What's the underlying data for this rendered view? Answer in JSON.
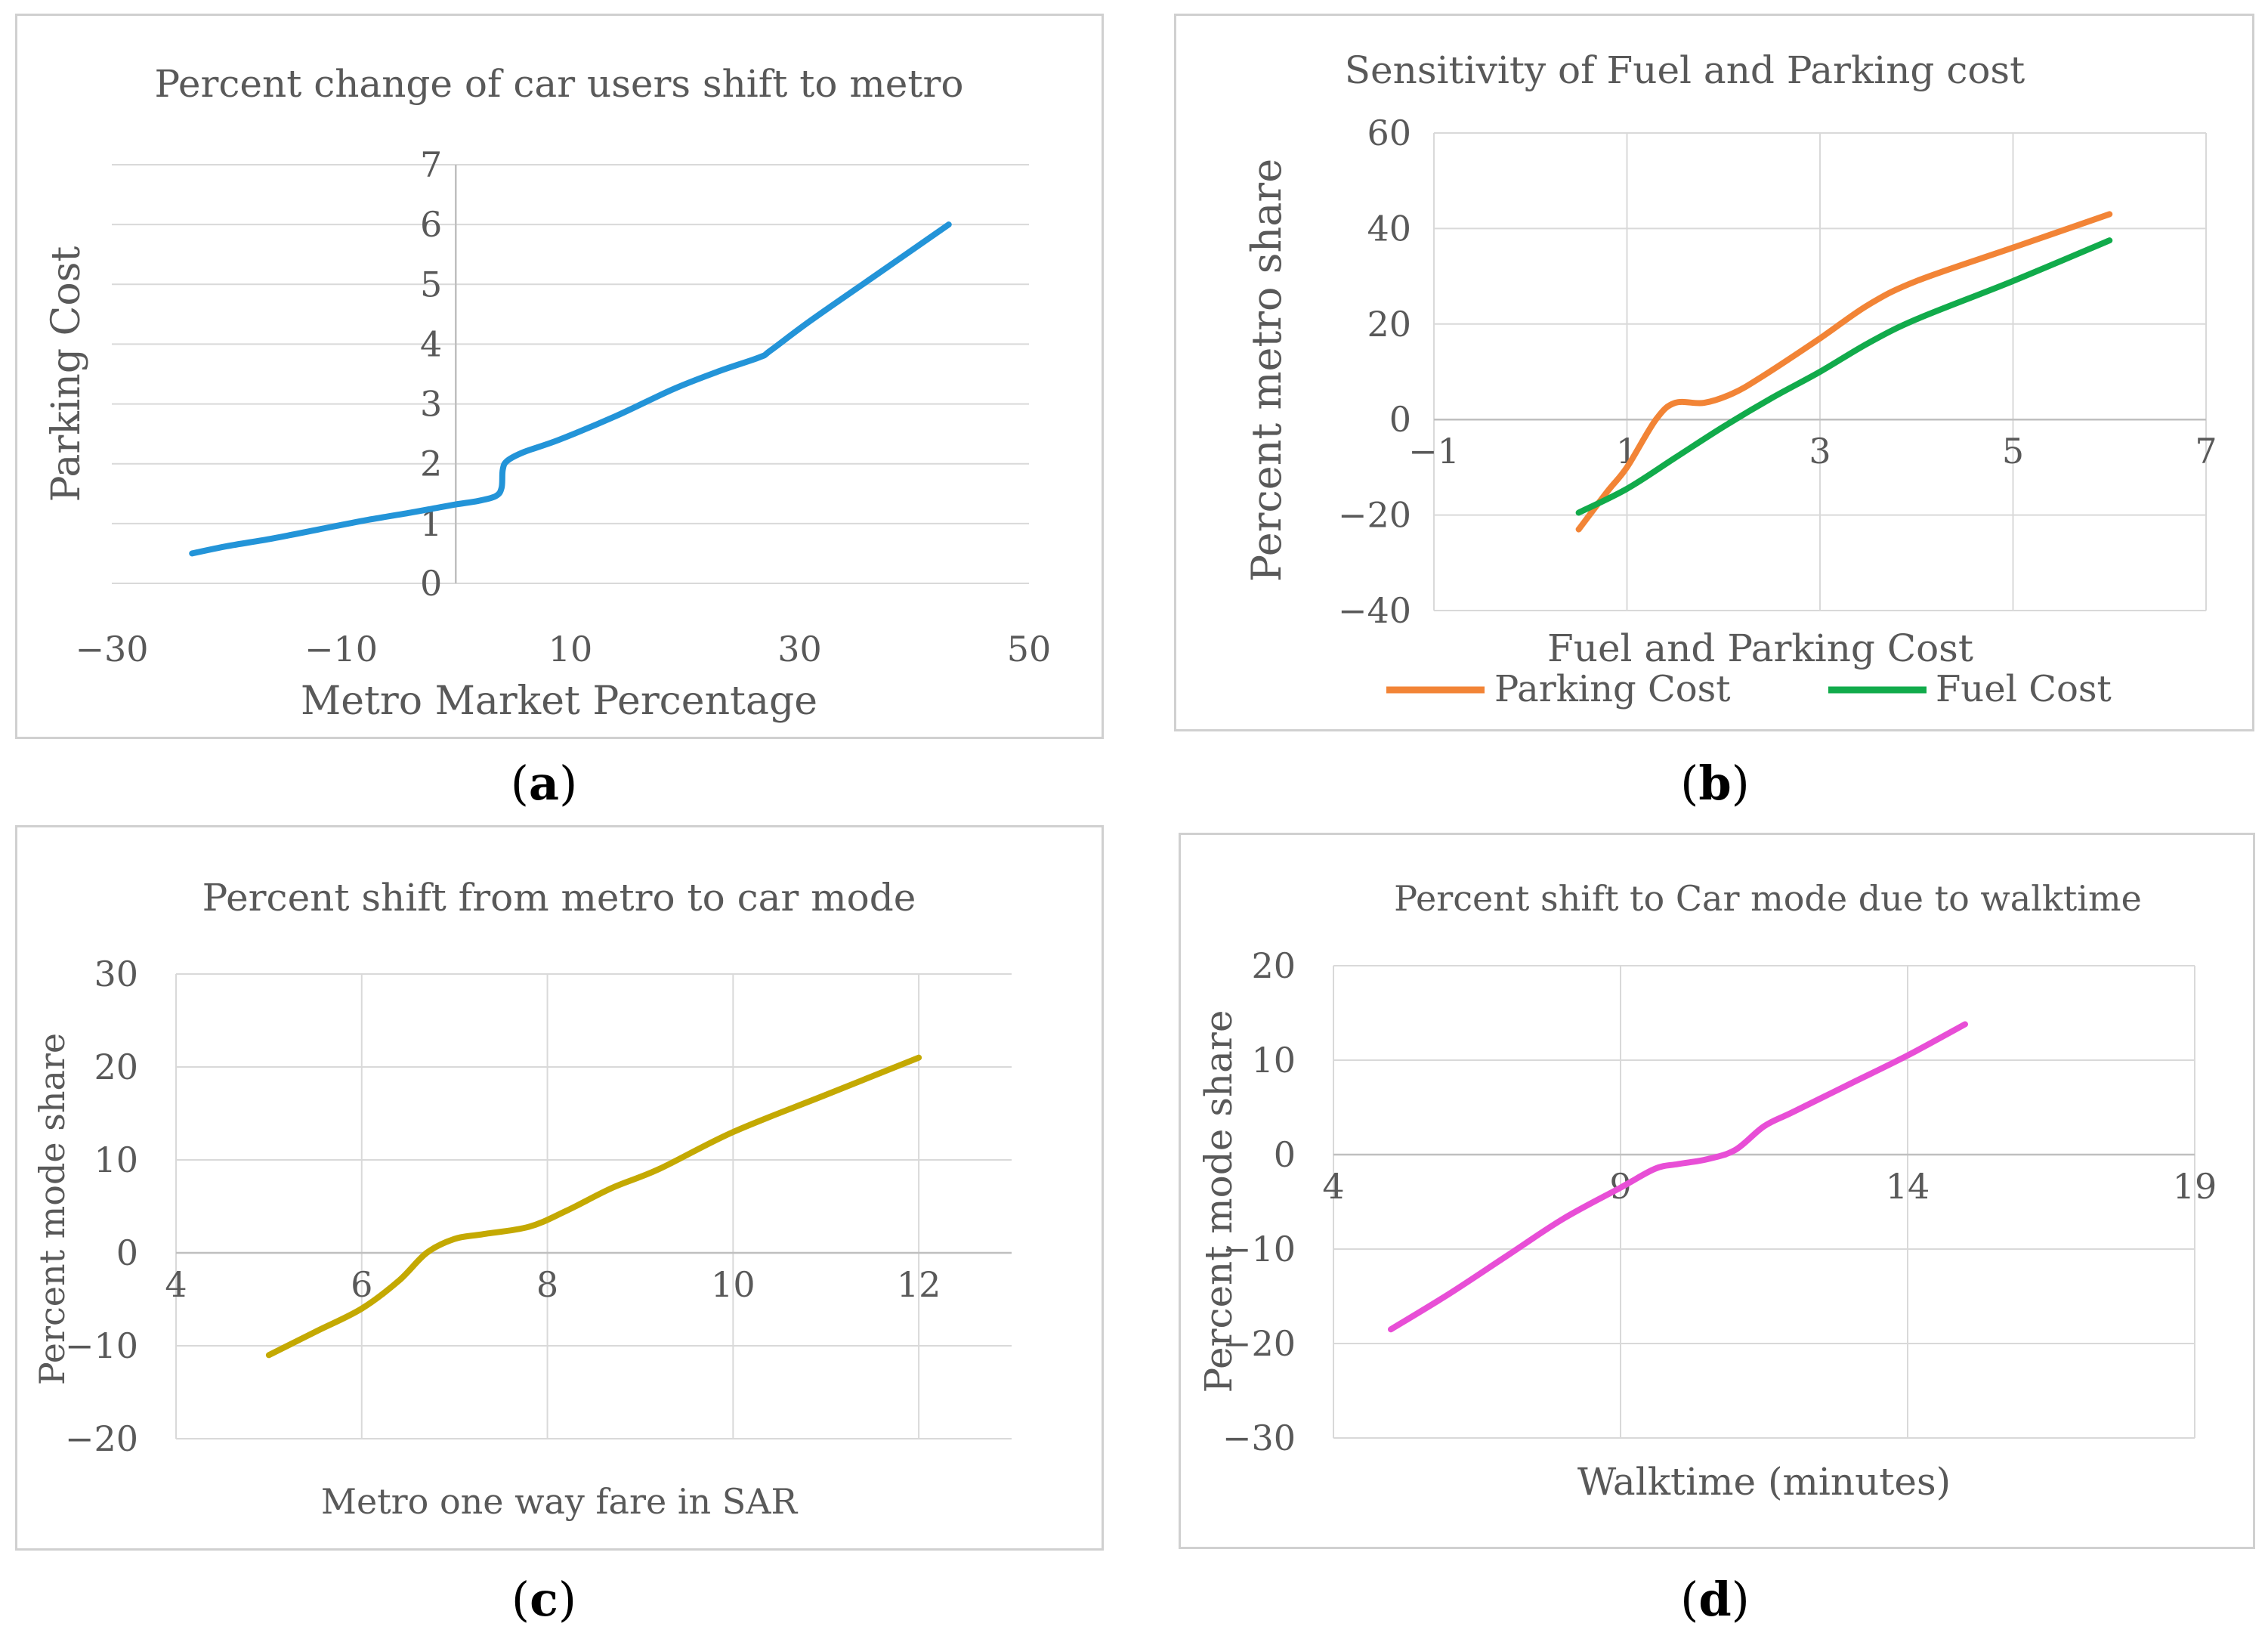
{
  "chart_data": [
    {
      "id": "a",
      "type": "line",
      "title": "Percent change of car users shift to metro",
      "xlabel": "Metro Market Percentage",
      "ylabel": "Parking Cost",
      "xlim": [
        -30,
        50
      ],
      "ylim": [
        0,
        7
      ],
      "xticks": [
        -30,
        -10,
        10,
        30,
        50
      ],
      "xtick_labels": [
        "−30",
        "−10",
        "10",
        "30",
        "50"
      ],
      "yticks": [
        0,
        1,
        2,
        3,
        4,
        5,
        6,
        7
      ],
      "ytick_labels": [
        "0",
        "1",
        "2",
        "3",
        "4",
        "5",
        "6",
        "7"
      ],
      "series": [
        {
          "name": "Parking Cost",
          "color": "#2394d8",
          "x": [
            -23,
            -20,
            -16,
            -12,
            -8,
            -4,
            -2,
            0,
            2,
            3.5,
            4,
            4.1,
            4.5,
            6,
            9,
            14,
            19,
            23,
            26.5,
            27.5,
            31,
            37,
            43
          ],
          "y": [
            0.5,
            0.62,
            0.75,
            0.9,
            1.05,
            1.18,
            1.25,
            1.32,
            1.38,
            1.46,
            1.6,
            1.9,
            2.05,
            2.2,
            2.4,
            2.8,
            3.25,
            3.55,
            3.78,
            3.9,
            4.4,
            5.2,
            6.0
          ]
        }
      ]
    },
    {
      "id": "b",
      "type": "line",
      "title": "Sensitivity of Fuel and Parking cost",
      "xlabel": "Fuel and Parking Cost",
      "ylabel": "Percent metro share",
      "xlim": [
        -1,
        7
      ],
      "ylim": [
        -40,
        60
      ],
      "xticks": [
        -1,
        1,
        3,
        5,
        7
      ],
      "xtick_labels": [
        "−1",
        "1",
        "3",
        "5",
        "7"
      ],
      "yticks": [
        -40,
        -20,
        0,
        20,
        40,
        60
      ],
      "ytick_labels": [
        "−40",
        "−20",
        "0",
        "20",
        "40",
        "60"
      ],
      "legend": "bottom",
      "series": [
        {
          "name": "Parking Cost",
          "color": "#f28436",
          "x": [
            0.5,
            0.8,
            1.0,
            1.3,
            1.5,
            1.8,
            2.1,
            2.4,
            3.0,
            3.5,
            4.0,
            5.0,
            6.0
          ],
          "y": [
            -23,
            -15,
            -10,
            0,
            3.5,
            3.5,
            5.5,
            9,
            17,
            24,
            29,
            36,
            43
          ]
        },
        {
          "name": "Fuel Cost",
          "color": "#11ab4b",
          "x": [
            0.5,
            1.0,
            1.5,
            2.0,
            2.5,
            3.0,
            3.5,
            4.0,
            5.0,
            6.0
          ],
          "y": [
            -19.5,
            -14.5,
            -8,
            -1.5,
            4.5,
            10,
            16,
            21,
            29,
            37.5
          ]
        }
      ]
    },
    {
      "id": "c",
      "type": "line",
      "title": "Percent shift from metro to car mode",
      "xlabel": "Metro one way fare in SAR",
      "ylabel": "Percent mode share",
      "xlim": [
        4,
        13
      ],
      "ylim": [
        -20,
        30
      ],
      "xticks": [
        4,
        6,
        8,
        10,
        12
      ],
      "xtick_labels": [
        "4",
        "6",
        "8",
        "10",
        "12"
      ],
      "yticks": [
        -20,
        -10,
        0,
        10,
        20,
        30
      ],
      "ytick_labels": [
        "−20",
        "−10",
        "0",
        "10",
        "20",
        "30"
      ],
      "series": [
        {
          "name": "Percent mode share",
          "color": "#c4a902",
          "x": [
            5,
            5.5,
            6,
            6.4,
            6.7,
            7,
            7.3,
            7.8,
            8.2,
            8.7,
            9.2,
            10,
            11,
            12
          ],
          "y": [
            -11,
            -8.5,
            -6,
            -3,
            0,
            1.5,
            2,
            2.8,
            4.5,
            7,
            9,
            13,
            17,
            21
          ]
        }
      ]
    },
    {
      "id": "d",
      "type": "line",
      "title": "Percent shift to Car mode due to walktime",
      "xlabel": "Walktime (minutes)",
      "ylabel": "Percent mode share",
      "xlim": [
        4,
        19
      ],
      "ylim": [
        -30,
        20
      ],
      "xticks": [
        4,
        9,
        14,
        19
      ],
      "xtick_labels": [
        "4",
        "9",
        "14",
        "19"
      ],
      "yticks": [
        -30,
        -20,
        -10,
        0,
        10,
        20
      ],
      "ytick_labels": [
        "−30",
        "−20",
        "−10",
        "0",
        "10",
        "20"
      ],
      "series": [
        {
          "name": "Percent mode share",
          "color": "#e84ed6",
          "x": [
            5,
            6,
            7,
            8,
            9,
            9.6,
            10,
            10.5,
            11,
            11.5,
            12,
            13,
            14,
            15
          ],
          "y": [
            -18.5,
            -14.8,
            -10.8,
            -6.8,
            -3.5,
            -1.5,
            -1.0,
            -0.5,
            0.5,
            3.0,
            4.5,
            7.5,
            10.5,
            13.8
          ]
        }
      ]
    }
  ],
  "captions": [
    "a",
    "b",
    "c",
    "d"
  ]
}
